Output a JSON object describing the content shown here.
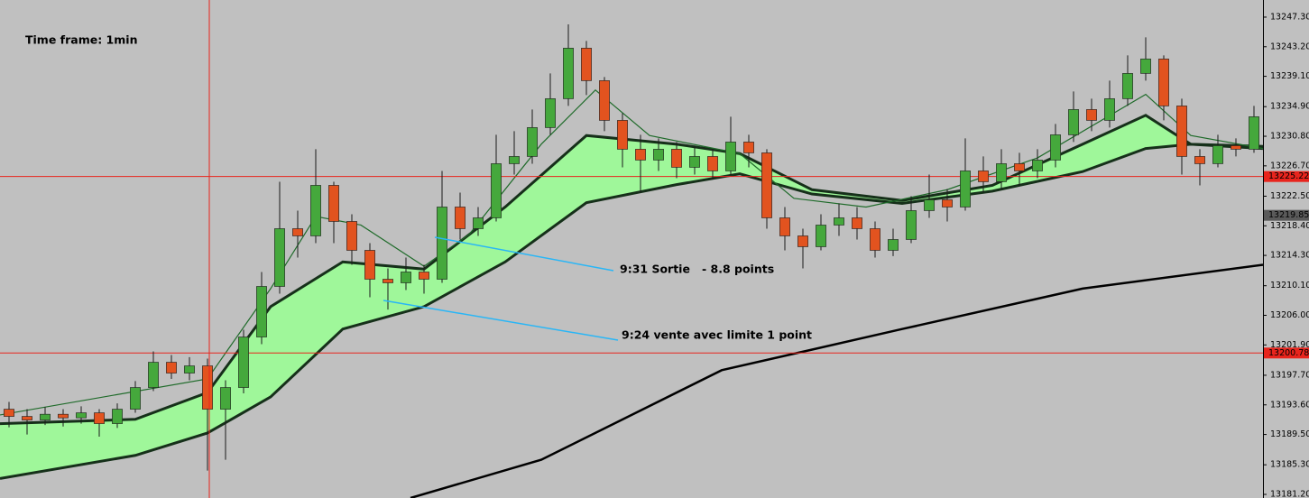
{
  "chart_data": {
    "type": "candlestick",
    "title": "Time frame: 1min",
    "annotations": [
      "9:31 Sortie   - 8.8 points",
      "9:24 vente avec limite 1 point"
    ],
    "ylim": [
      13180.7,
      13249.67
    ],
    "xlim": [
      0,
      70
    ],
    "yticks": [
      {
        "value": 13247.3,
        "label": "13247.30"
      },
      {
        "value": 13243.2,
        "label": "13243.20"
      },
      {
        "value": 13239.1,
        "label": "13239.10"
      },
      {
        "value": 13234.9,
        "label": "13234.90"
      },
      {
        "value": 13230.8,
        "label": "13230.80"
      },
      {
        "value": 13226.7,
        "label": "13226.70"
      },
      {
        "value": 13222.5,
        "label": "13222.50"
      },
      {
        "value": 13218.4,
        "label": "13218.40"
      },
      {
        "value": 13214.3,
        "label": "13214.30"
      },
      {
        "value": 13210.1,
        "label": "13210.10"
      },
      {
        "value": 13206.0,
        "label": "13206.00"
      },
      {
        "value": 13201.9,
        "label": "13201.90"
      },
      {
        "value": 13197.7,
        "label": "13197.70"
      },
      {
        "value": 13193.6,
        "label": "13193.60"
      },
      {
        "value": 13189.5,
        "label": "13189.50"
      },
      {
        "value": 13185.3,
        "label": "13185.30"
      },
      {
        "value": 13181.2,
        "label": "13181.20"
      }
    ],
    "up_color": "#45a83c",
    "down_color": "#e2531f",
    "open": [
      13193.0,
      13192.0,
      13191.5,
      13192.3,
      13191.8,
      13192.5,
      13191.0,
      13193.0,
      13196.0,
      13199.5,
      13198.0,
      13199.0,
      13193.0,
      13196.0,
      13203.0,
      13210.0,
      13218.0,
      13217.0,
      13224.0,
      13219.0,
      13215.0,
      13211.0,
      13210.5,
      13212.0,
      13211.0,
      13221.0,
      13218.0,
      13219.5,
      13227.0,
      13228.0,
      13232.0,
      13236.0,
      13243.0,
      13238.5,
      13233.0,
      13229.0,
      13227.5,
      13229.0,
      13226.5,
      13228.0,
      13226.0,
      13230.0,
      13228.5,
      13219.5,
      13217.0,
      13215.5,
      13218.5,
      13219.5,
      13218.0,
      13215.0,
      13216.5,
      13220.5,
      13222.0,
      13221.0,
      13226.0,
      13224.5,
      13227.0,
      13226.0,
      13227.5,
      13231.0,
      13234.5,
      13233.0,
      13236.0,
      13239.5,
      13241.5,
      13235.0,
      13228.0,
      13227.0,
      13229.5,
      13229.0
    ],
    "high": [
      13194.0,
      13193.0,
      13193.3,
      13193.0,
      13193.4,
      13193.0,
      13193.8,
      13196.9,
      13201.0,
      13200.5,
      13200.2,
      13200.0,
      13197.0,
      13204.0,
      13212.0,
      13224.5,
      13220.5,
      13229.0,
      13224.5,
      13220.0,
      13216.0,
      13212.5,
      13214.0,
      13213.0,
      13226.0,
      13223.0,
      13221.0,
      13231.0,
      13231.5,
      13234.5,
      13239.5,
      13246.3,
      13244.0,
      13239.0,
      13234.0,
      13231.0,
      13230.5,
      13230.0,
      13229.5,
      13229.0,
      13233.5,
      13231.0,
      13229.0,
      13221.0,
      13218.0,
      13220.0,
      13221.5,
      13221.0,
      13219.0,
      13218.0,
      13222.5,
      13225.5,
      13223.5,
      13230.5,
      13228.0,
      13229.0,
      13228.5,
      13229.0,
      13232.5,
      13237.0,
      13236.0,
      13238.5,
      13242.0,
      13244.5,
      13242.0,
      13236.0,
      13229.0,
      13231.0,
      13230.5,
      13235.0
    ],
    "low": [
      13190.5,
      13189.5,
      13190.8,
      13190.6,
      13191.0,
      13189.2,
      13190.4,
      13192.5,
      13195.5,
      13197.2,
      13197.0,
      13184.5,
      13186.0,
      13195.2,
      13202.0,
      13209.0,
      13214.0,
      13216.0,
      13216.0,
      13213.0,
      13208.5,
      13206.8,
      13209.5,
      13209.0,
      13210.5,
      13216.5,
      13217.0,
      13219.0,
      13225.5,
      13227.0,
      13231.0,
      13235.0,
      13236.5,
      13231.5,
      13226.5,
      13223.0,
      13226.0,
      13225.0,
      13225.5,
      13224.8,
      13225.5,
      13226.5,
      13218.0,
      13215.0,
      13212.5,
      13215.0,
      13217.0,
      13216.5,
      13214.0,
      13214.2,
      13216.0,
      13219.5,
      13219.0,
      13220.5,
      13223.0,
      13223.5,
      13224.0,
      13225.0,
      13226.5,
      13230.0,
      13231.5,
      13232.0,
      13235.0,
      13238.5,
      13233.0,
      13225.5,
      13224.0,
      13226.5,
      13228.0,
      13228.5
    ],
    "close": [
      13192.0,
      13191.5,
      13192.3,
      13191.8,
      13192.5,
      13191.0,
      13193.0,
      13196.0,
      13199.5,
      13198.0,
      13199.0,
      13193.0,
      13196.0,
      13203.0,
      13210.0,
      13218.0,
      13217.0,
      13224.0,
      13219.0,
      13215.0,
      13211.0,
      13210.5,
      13212.0,
      13211.0,
      13221.0,
      13218.0,
      13219.5,
      13227.0,
      13228.0,
      13232.0,
      13236.0,
      13243.0,
      13238.5,
      13233.0,
      13229.0,
      13227.5,
      13229.0,
      13226.5,
      13228.0,
      13226.0,
      13230.0,
      13228.5,
      13219.5,
      13217.0,
      13215.5,
      13218.5,
      13219.5,
      13218.0,
      13215.0,
      13216.5,
      13220.5,
      13222.0,
      13221.0,
      13226.0,
      13224.5,
      13227.0,
      13226.0,
      13227.5,
      13231.0,
      13234.5,
      13233.0,
      13236.0,
      13239.5,
      13241.5,
      13235.0,
      13228.0,
      13227.0,
      13229.5,
      13229.0,
      13233.5
    ],
    "band": {
      "fill": "#9ff79a",
      "line_color": "#16301a",
      "x": [
        0,
        7.5,
        11.5,
        15,
        19,
        23.5,
        28,
        32.5,
        37.5,
        41,
        45,
        50,
        55,
        60,
        63.5,
        66,
        70
      ],
      "upper": [
        13191.0,
        13191.6,
        13195.3,
        13207.2,
        13213.4,
        13212.4,
        13221.0,
        13230.9,
        13229.7,
        13228.4,
        13223.4,
        13221.9,
        13224.0,
        13229.7,
        13233.7,
        13229.7,
        13229.4
      ],
      "lower": [
        13183.4,
        13186.6,
        13189.7,
        13194.7,
        13204.1,
        13207.2,
        13213.4,
        13221.6,
        13224.1,
        13225.6,
        13222.8,
        13221.5,
        13223.2,
        13225.9,
        13229.1,
        13229.7,
        13229.1
      ]
    },
    "lines": [
      {
        "color": "#1f6b2a",
        "x": [
          0,
          11.5,
          15,
          17.5,
          20,
          23.5,
          26,
          30,
          33,
          36,
          41,
          44,
          48,
          52.5,
          57.5,
          63.5,
          66,
          70
        ],
        "values": [
          13192.2,
          13197.2,
          13209.7,
          13219.7,
          13218.5,
          13212.8,
          13217.2,
          13229.7,
          13237.2,
          13230.9,
          13228.4,
          13222.2,
          13221.0,
          13223.4,
          13227.8,
          13236.6,
          13230.9,
          13229.1
        ]
      },
      {
        "color": "#000000",
        "x": [
          22.75,
          30,
          40,
          50,
          60,
          70
        ],
        "values": [
          13180.7,
          13186.0,
          13198.4,
          13204.1,
          13209.7,
          13213.0
        ]
      }
    ],
    "price_levels": [
      {
        "value": 13225.22,
        "label": "13225.22",
        "color": "#e8241c",
        "line": true
      },
      {
        "value": 13219.85,
        "label": "13219.85",
        "color": "#5a5a5a",
        "line": false
      },
      {
        "value": 13200.78,
        "label": "13200.78",
        "color": "#e8241c",
        "line": true
      }
    ]
  }
}
